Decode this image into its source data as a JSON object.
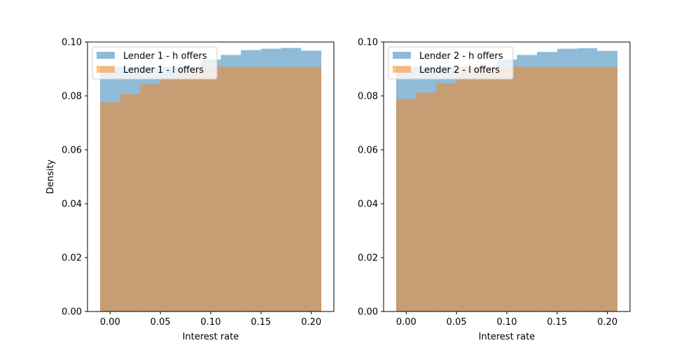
{
  "colors": {
    "h_offers": "#1f77b4",
    "l_offers": "#ff7f0e",
    "bar_alpha": 0.5,
    "axis": "#000000",
    "background": "#ffffff"
  },
  "chart_data": [
    {
      "type": "bar",
      "xlabel": "Interest rate",
      "ylabel": "Density",
      "xlim": [
        -0.0225,
        0.2225
      ],
      "ylim": [
        0,
        0.1
      ],
      "xticks": [
        "0.00",
        "0.05",
        "0.10",
        "0.15",
        "0.20"
      ],
      "yticks": [
        "0.00",
        "0.02",
        "0.04",
        "0.06",
        "0.08",
        "0.10"
      ],
      "grid": false,
      "legend_position": "top-left",
      "bin_edges": [
        -0.01,
        0.01,
        0.03,
        0.05,
        0.07,
        0.09,
        0.11,
        0.13,
        0.15,
        0.17,
        0.19,
        0.21
      ],
      "series": [
        {
          "name": "Lender 1 - h offers",
          "color": "#1f77b4",
          "values": [
            0.0908,
            0.0908,
            0.0908,
            0.0908,
            0.0908,
            0.0935,
            0.0952,
            0.097,
            0.0975,
            0.0978,
            0.0968
          ]
        },
        {
          "name": "Lender 1 - l offers",
          "color": "#ff7f0e",
          "values": [
            0.0776,
            0.0807,
            0.0843,
            0.0873,
            0.0892,
            0.0908,
            0.0908,
            0.0908,
            0.0908,
            0.0908,
            0.0908
          ]
        }
      ]
    },
    {
      "type": "bar",
      "xlabel": "Interest rate",
      "ylabel": "",
      "xlim": [
        -0.0225,
        0.2225
      ],
      "ylim": [
        0,
        0.1
      ],
      "xticks": [
        "0.00",
        "0.05",
        "0.10",
        "0.15",
        "0.20"
      ],
      "yticks": [
        "0.00",
        "0.02",
        "0.04",
        "0.06",
        "0.08",
        "0.10"
      ],
      "grid": false,
      "legend_position": "top-left",
      "bin_edges": [
        -0.01,
        0.01,
        0.03,
        0.05,
        0.07,
        0.09,
        0.11,
        0.13,
        0.15,
        0.17,
        0.19,
        0.21
      ],
      "series": [
        {
          "name": "Lender 2 - h offers",
          "color": "#1f77b4",
          "values": [
            0.0908,
            0.0908,
            0.0908,
            0.0908,
            0.0908,
            0.0935,
            0.0952,
            0.0963,
            0.0975,
            0.0977,
            0.0967
          ]
        },
        {
          "name": "Lender 2 - l offers",
          "color": "#ff7f0e",
          "values": [
            0.0788,
            0.0812,
            0.0847,
            0.0908,
            0.0908,
            0.0908,
            0.0908,
            0.0908,
            0.0908,
            0.0908,
            0.0908
          ]
        }
      ]
    }
  ]
}
